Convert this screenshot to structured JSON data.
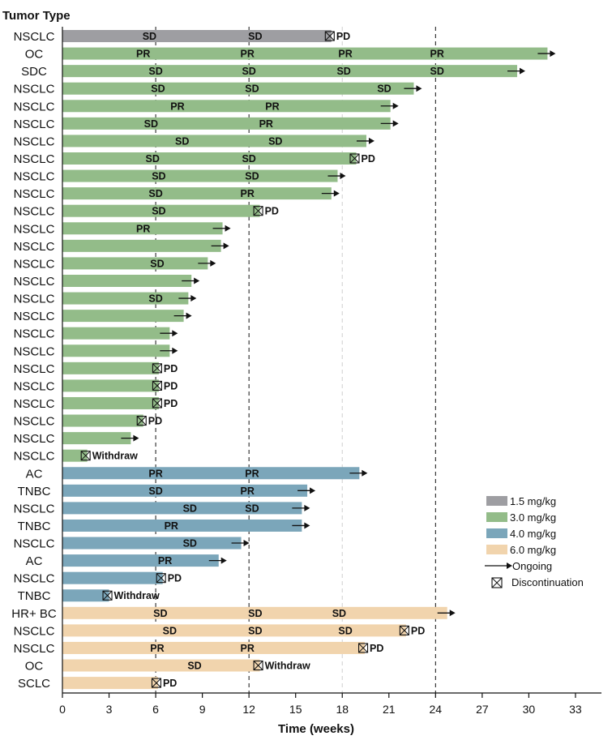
{
  "chart_data": {
    "type": "swimmer",
    "ylabel": "Tumor Type",
    "xlabel": "Time (weeks)",
    "xlim": [
      0,
      35
    ],
    "xticks": [
      0,
      3,
      6,
      9,
      12,
      15,
      18,
      21,
      24,
      27,
      30,
      33
    ],
    "reference_lines": [
      {
        "x": 6,
        "style": "dashed-dark"
      },
      {
        "x": 12,
        "style": "dashed-dark"
      },
      {
        "x": 18,
        "style": "dashed-light"
      },
      {
        "x": 24,
        "style": "dashed-dark"
      }
    ],
    "colors": {
      "1.5 mg/kg": "#9e9ea2",
      "3.0 mg/kg": "#93bc89",
      "4.0 mg/kg": "#7ba6ba",
      "6.0 mg/kg": "#f1d4ad"
    },
    "legend": {
      "position": "right",
      "items": [
        {
          "label": "1.5 mg/kg",
          "type": "swatch",
          "dose": "1.5 mg/kg"
        },
        {
          "label": "3.0 mg/kg",
          "type": "swatch",
          "dose": "3.0 mg/kg"
        },
        {
          "label": "4.0 mg/kg",
          "type": "swatch",
          "dose": "4.0 mg/kg"
        },
        {
          "label": "6.0 mg/kg",
          "type": "swatch",
          "dose": "6.0 mg/kg"
        },
        {
          "label": "Ongoing",
          "type": "arrow"
        },
        {
          "label": "Discontinuation",
          "type": "box"
        }
      ]
    },
    "rows": [
      {
        "tumor": "NSCLC",
        "dose": "1.5 mg/kg",
        "duration": 17.3,
        "end": "discontinued",
        "end_label": "PD",
        "responses": [
          {
            "t": 5.6,
            "label": "SD"
          },
          {
            "t": 12.4,
            "label": "SD"
          }
        ]
      },
      {
        "tumor": "OC",
        "dose": "3.0 mg/kg",
        "duration": 31.2,
        "end": "ongoing",
        "end_label": "",
        "responses": [
          {
            "t": 5.2,
            "label": "PR"
          },
          {
            "t": 11.9,
            "label": "PR"
          },
          {
            "t": 18.2,
            "label": "PR"
          },
          {
            "t": 24.1,
            "label": "PR"
          }
        ]
      },
      {
        "tumor": "SDC",
        "dose": "3.0 mg/kg",
        "duration": 29.25,
        "end": "ongoing",
        "end_label": "",
        "responses": [
          {
            "t": 6.0,
            "label": "SD"
          },
          {
            "t": 12.0,
            "label": "SD"
          },
          {
            "t": 18.1,
            "label": "SD"
          },
          {
            "t": 24.1,
            "label": "SD"
          }
        ]
      },
      {
        "tumor": "NSCLC",
        "dose": "3.0 mg/kg",
        "duration": 22.6,
        "end": "ongoing",
        "end_label": "",
        "responses": [
          {
            "t": 6.15,
            "label": "SD"
          },
          {
            "t": 12.2,
            "label": "SD"
          },
          {
            "t": 20.7,
            "label": "SD"
          }
        ]
      },
      {
        "tumor": "NSCLC",
        "dose": "3.0 mg/kg",
        "duration": 21.1,
        "end": "ongoing",
        "end_label": "",
        "responses": [
          {
            "t": 7.4,
            "label": "PR"
          },
          {
            "t": 13.5,
            "label": "PR"
          }
        ]
      },
      {
        "tumor": "NSCLC",
        "dose": "3.0 mg/kg",
        "duration": 21.1,
        "end": "ongoing",
        "end_label": "",
        "responses": [
          {
            "t": 5.7,
            "label": "SD"
          },
          {
            "t": 13.1,
            "label": "PR"
          }
        ]
      },
      {
        "tumor": "NSCLC",
        "dose": "3.0 mg/kg",
        "duration": 19.55,
        "end": "ongoing",
        "end_label": "",
        "responses": [
          {
            "t": 7.7,
            "label": "SD"
          },
          {
            "t": 13.7,
            "label": "SD"
          }
        ]
      },
      {
        "tumor": "NSCLC",
        "dose": "3.0 mg/kg",
        "duration": 18.9,
        "end": "discontinued",
        "end_label": "PD",
        "responses": [
          {
            "t": 5.8,
            "label": "SD"
          },
          {
            "t": 12.0,
            "label": "SD"
          }
        ]
      },
      {
        "tumor": "NSCLC",
        "dose": "3.0 mg/kg",
        "duration": 17.7,
        "end": "ongoing",
        "end_label": "",
        "responses": [
          {
            "t": 6.2,
            "label": "SD"
          },
          {
            "t": 12.2,
            "label": "SD"
          }
        ]
      },
      {
        "tumor": "NSCLC",
        "dose": "3.0 mg/kg",
        "duration": 17.3,
        "end": "ongoing",
        "end_label": "",
        "responses": [
          {
            "t": 6.0,
            "label": "SD"
          },
          {
            "t": 11.9,
            "label": "PR"
          }
        ]
      },
      {
        "tumor": "NSCLC",
        "dose": "3.0 mg/kg",
        "duration": 12.7,
        "end": "discontinued",
        "end_label": "PD",
        "responses": [
          {
            "t": 6.2,
            "label": "SD"
          }
        ]
      },
      {
        "tumor": "NSCLC",
        "dose": "3.0 mg/kg",
        "duration": 10.3,
        "end": "ongoing",
        "end_label": "",
        "responses": [
          {
            "t": 5.2,
            "label": "PR"
          }
        ]
      },
      {
        "tumor": "NSCLC",
        "dose": "3.0 mg/kg",
        "duration": 10.2,
        "end": "ongoing",
        "end_label": "",
        "responses": []
      },
      {
        "tumor": "NSCLC",
        "dose": "3.0 mg/kg",
        "duration": 9.35,
        "end": "ongoing",
        "end_label": "",
        "responses": [
          {
            "t": 6.1,
            "label": "SD"
          }
        ]
      },
      {
        "tumor": "NSCLC",
        "dose": "3.0 mg/kg",
        "duration": 8.3,
        "end": "ongoing",
        "end_label": "",
        "responses": []
      },
      {
        "tumor": "NSCLC",
        "dose": "3.0 mg/kg",
        "duration": 8.1,
        "end": "ongoing",
        "end_label": "",
        "responses": [
          {
            "t": 6.0,
            "label": "SD"
          }
        ]
      },
      {
        "tumor": "NSCLC",
        "dose": "3.0 mg/kg",
        "duration": 7.8,
        "end": "ongoing",
        "end_label": "",
        "responses": []
      },
      {
        "tumor": "NSCLC",
        "dose": "3.0 mg/kg",
        "duration": 6.9,
        "end": "ongoing",
        "end_label": "",
        "responses": []
      },
      {
        "tumor": "NSCLC",
        "dose": "3.0 mg/kg",
        "duration": 6.9,
        "end": "ongoing",
        "end_label": "",
        "responses": []
      },
      {
        "tumor": "NSCLC",
        "dose": "3.0 mg/kg",
        "duration": 6.2,
        "end": "discontinued",
        "end_label": "PD",
        "responses": []
      },
      {
        "tumor": "NSCLC",
        "dose": "3.0 mg/kg",
        "duration": 6.2,
        "end": "discontinued",
        "end_label": "PD",
        "responses": []
      },
      {
        "tumor": "NSCLC",
        "dose": "3.0 mg/kg",
        "duration": 6.2,
        "end": "discontinued",
        "end_label": "PD",
        "responses": []
      },
      {
        "tumor": "NSCLC",
        "dose": "3.0 mg/kg",
        "duration": 5.2,
        "end": "discontinued",
        "end_label": "PD",
        "responses": []
      },
      {
        "tumor": "NSCLC",
        "dose": "3.0 mg/kg",
        "duration": 4.4,
        "end": "ongoing",
        "end_label": "",
        "responses": []
      },
      {
        "tumor": "NSCLC",
        "dose": "3.0 mg/kg",
        "duration": 1.6,
        "end": "discontinued",
        "end_label": "Withdraw",
        "responses": []
      },
      {
        "tumor": "AC",
        "dose": "4.0 mg/kg",
        "duration": 19.1,
        "end": "ongoing",
        "end_label": "",
        "responses": [
          {
            "t": 6.0,
            "label": "PR"
          },
          {
            "t": 12.2,
            "label": "PR"
          }
        ]
      },
      {
        "tumor": "TNBC",
        "dose": "4.0 mg/kg",
        "duration": 15.75,
        "end": "ongoing",
        "end_label": "",
        "responses": [
          {
            "t": 6.0,
            "label": "SD"
          },
          {
            "t": 11.9,
            "label": "PR"
          }
        ]
      },
      {
        "tumor": "NSCLC",
        "dose": "4.0 mg/kg",
        "duration": 15.4,
        "end": "ongoing",
        "end_label": "",
        "responses": [
          {
            "t": 8.2,
            "label": "SD"
          },
          {
            "t": 12.2,
            "label": "SD"
          }
        ]
      },
      {
        "tumor": "TNBC",
        "dose": "4.0 mg/kg",
        "duration": 15.4,
        "end": "ongoing",
        "end_label": "",
        "responses": [
          {
            "t": 7.0,
            "label": "PR"
          }
        ]
      },
      {
        "tumor": "NSCLC",
        "dose": "4.0 mg/kg",
        "duration": 11.5,
        "end": "ongoing",
        "end_label": "",
        "responses": [
          {
            "t": 8.2,
            "label": "SD"
          }
        ]
      },
      {
        "tumor": "AC",
        "dose": "4.0 mg/kg",
        "duration": 10.05,
        "end": "ongoing",
        "end_label": "",
        "responses": [
          {
            "t": 6.6,
            "label": "PR"
          }
        ]
      },
      {
        "tumor": "NSCLC",
        "dose": "4.0 mg/kg",
        "duration": 6.45,
        "end": "discontinued",
        "end_label": "PD",
        "responses": []
      },
      {
        "tumor": "TNBC",
        "dose": "4.0 mg/kg",
        "duration": 3.0,
        "end": "discontinued",
        "end_label": "Withdraw",
        "responses": []
      },
      {
        "tumor": "HR+ BC",
        "dose": "6.0 mg/kg",
        "duration": 24.75,
        "end": "ongoing",
        "end_label": "",
        "responses": [
          {
            "t": 6.3,
            "label": "SD"
          },
          {
            "t": 12.4,
            "label": "SD"
          },
          {
            "t": 17.8,
            "label": "SD"
          }
        ]
      },
      {
        "tumor": "NSCLC",
        "dose": "6.0 mg/kg",
        "duration": 22.1,
        "end": "discontinued",
        "end_label": "PD",
        "responses": [
          {
            "t": 6.9,
            "label": "SD"
          },
          {
            "t": 12.4,
            "label": "SD"
          },
          {
            "t": 18.2,
            "label": "SD"
          }
        ]
      },
      {
        "tumor": "NSCLC",
        "dose": "6.0 mg/kg",
        "duration": 19.45,
        "end": "discontinued",
        "end_label": "PD",
        "responses": [
          {
            "t": 6.1,
            "label": "PR"
          },
          {
            "t": 11.9,
            "label": "PR"
          }
        ]
      },
      {
        "tumor": "OC",
        "dose": "6.0 mg/kg",
        "duration": 12.7,
        "end": "discontinued",
        "end_label": "Withdraw",
        "responses": [
          {
            "t": 8.5,
            "label": "SD"
          }
        ]
      },
      {
        "tumor": "SCLC",
        "dose": "6.0 mg/kg",
        "duration": 6.15,
        "end": "discontinued",
        "end_label": "PD",
        "responses": []
      }
    ]
  }
}
